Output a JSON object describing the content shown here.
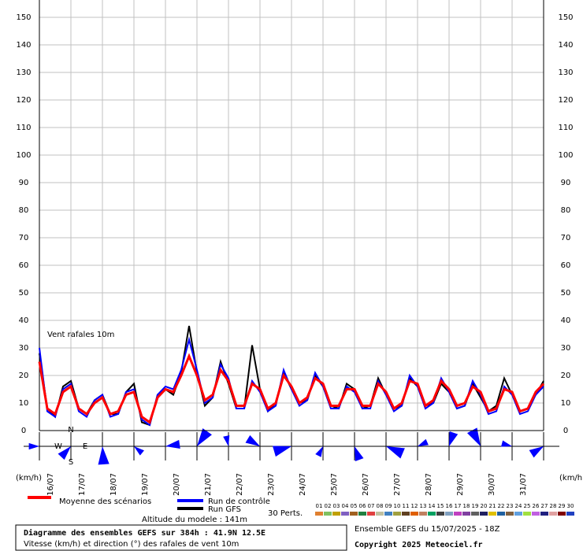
{
  "chart_data": {
    "type": "line",
    "annotation": "Vent rafales 10m",
    "y_unit_left": "(km/h)",
    "y_unit_right": "(km/h)",
    "categories": [
      null,
      "16/07",
      null,
      null,
      null,
      "17/07",
      null,
      null,
      null,
      "18/07",
      null,
      null,
      null,
      "19/07",
      null,
      null,
      null,
      "20/07",
      null,
      null,
      null,
      "21/07",
      null,
      null,
      null,
      "22/07",
      null,
      null,
      null,
      "23/07",
      null,
      null,
      null,
      "24/07",
      null,
      null,
      null,
      "25/07",
      null,
      null,
      null,
      "26/07",
      null,
      null,
      null,
      "27/07",
      null,
      null,
      null,
      "28/07",
      null,
      null,
      null,
      "29/07",
      null,
      null,
      null,
      "30/07",
      null,
      null,
      null,
      "31/07",
      null,
      null,
      null
    ],
    "series": [
      {
        "name": "Moyenne des scénarios",
        "color": "#ff0000",
        "width": 3,
        "values": [
          25,
          8,
          6,
          14,
          16,
          8,
          6,
          10,
          12,
          6,
          7,
          13,
          14,
          5,
          3,
          12,
          15,
          14,
          20,
          27,
          20,
          11,
          13,
          22,
          18,
          9,
          9,
          17,
          15,
          8,
          10,
          20,
          16,
          10,
          12,
          19,
          17,
          9,
          9,
          15,
          15,
          9,
          9,
          17,
          14,
          8,
          10,
          18,
          17,
          9,
          11,
          18,
          15,
          9,
          10,
          16,
          14,
          7,
          8,
          15,
          14,
          7,
          8,
          14,
          17
        ]
      },
      {
        "name": "Run de contrôle",
        "color": "#0000ff",
        "width": 2,
        "values": [
          30,
          7,
          5,
          15,
          17,
          7,
          5,
          11,
          13,
          5,
          6,
          14,
          15,
          4,
          2,
          13,
          16,
          15,
          22,
          33,
          22,
          10,
          12,
          24,
          19,
          8,
          8,
          18,
          14,
          7,
          9,
          22,
          15,
          9,
          11,
          21,
          16,
          8,
          8,
          16,
          14,
          8,
          8,
          18,
          13,
          7,
          9,
          20,
          16,
          8,
          10,
          19,
          14,
          8,
          9,
          18,
          13,
          6,
          7,
          16,
          13,
          6,
          7,
          13,
          16
        ]
      },
      {
        "name": "Run GFS",
        "color": "#000000",
        "width": 2,
        "values": [
          28,
          8,
          5,
          16,
          18,
          8,
          6,
          11,
          13,
          6,
          6,
          14,
          17,
          3,
          2,
          13,
          15,
          13,
          21,
          38,
          21,
          9,
          12,
          25,
          17,
          8,
          8,
          31,
          15,
          7,
          10,
          21,
          15,
          10,
          11,
          20,
          16,
          9,
          8,
          17,
          15,
          8,
          9,
          19,
          13,
          8,
          9,
          19,
          16,
          9,
          10,
          17,
          14,
          8,
          9,
          17,
          12,
          7,
          9,
          19,
          13,
          7,
          8,
          13,
          18
        ]
      }
    ],
    "perturbations_label": "30 Perts.",
    "perturbations": [
      {
        "name": "01",
        "color": "#e08030"
      },
      {
        "name": "02",
        "color": "#80c060"
      },
      {
        "name": "03",
        "color": "#c0a000"
      },
      {
        "name": "04",
        "color": "#8060c0"
      },
      {
        "name": "05",
        "color": "#a06020"
      },
      {
        "name": "06",
        "color": "#208040"
      },
      {
        "name": "07",
        "color": "#e04040"
      },
      {
        "name": "08",
        "color": "#c0c0a0"
      },
      {
        "name": "09",
        "color": "#4080c0"
      },
      {
        "name": "10",
        "color": "#a0a040"
      },
      {
        "name": "11",
        "color": "#604020"
      },
      {
        "name": "12",
        "color": "#e06000"
      },
      {
        "name": "13",
        "color": "#c08060"
      },
      {
        "name": "14",
        "color": "#00a060"
      },
      {
        "name": "15",
        "color": "#404040"
      },
      {
        "name": "16",
        "color": "#80a0c0"
      },
      {
        "name": "17",
        "color": "#c040c0"
      },
      {
        "name": "18",
        "color": "#8040a0"
      },
      {
        "name": "19",
        "color": "#606060"
      },
      {
        "name": "20",
        "color": "#202060"
      },
      {
        "name": "21",
        "color": "#e0c000"
      },
      {
        "name": "22",
        "color": "#2060a0"
      },
      {
        "name": "23",
        "color": "#806040"
      },
      {
        "name": "24",
        "color": "#60a0e0"
      },
      {
        "name": "25",
        "color": "#a0e040"
      },
      {
        "name": "26",
        "color": "#c060e0"
      },
      {
        "name": "27",
        "color": "#202080"
      },
      {
        "name": "28",
        "color": "#e0a0a0"
      },
      {
        "name": "29",
        "color": "#800000"
      },
      {
        "name": "30",
        "color": "#2040c0"
      }
    ],
    "altitude": "Altitude du modele : 141m",
    "title": "Diagramme des ensembles GEFS sur 384h : 41.9N 12.5E",
    "subtitle": "Vitesse (km/h) et direction (°) des rafales de vent 10m",
    "run_info": "Ensemble GEFS du 15/07/2025 - 18Z",
    "copyright": "Copyright 2025 Meteociel.fr",
    "compass": [
      "N",
      "W",
      "E",
      "S"
    ],
    "ylim": [
      0,
      150
    ],
    "yticks": [
      0,
      10,
      20,
      30,
      40,
      50,
      60,
      70,
      80,
      90,
      100,
      110,
      120,
      130,
      140,
      150
    ],
    "grid": true
  }
}
